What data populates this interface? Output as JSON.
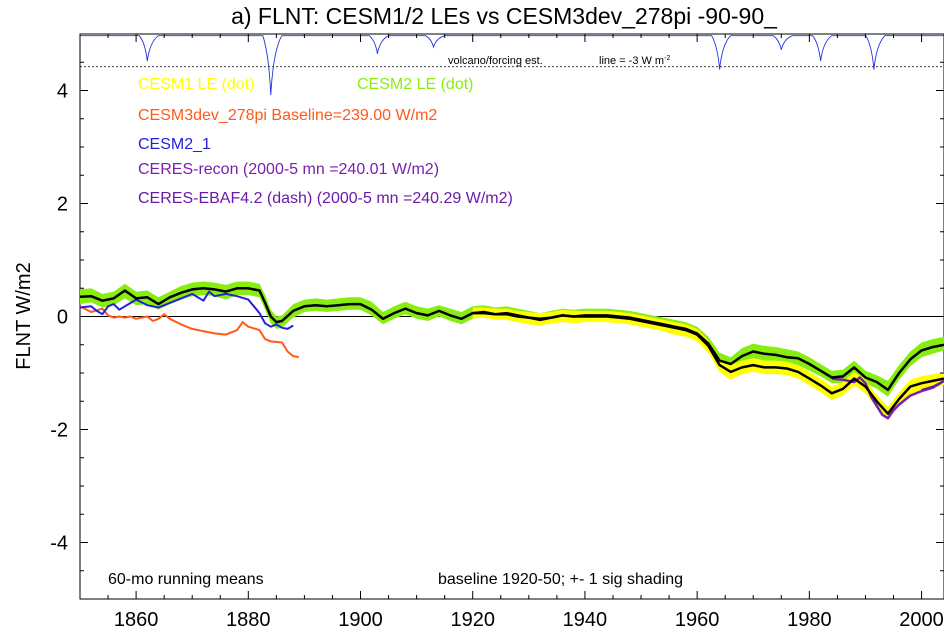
{
  "chart_data": {
    "type": "line",
    "title": "a) FLNT: CESM1/2 LEs vs CESM3dev_278pi -90-90_",
    "ylabel": "FLNT W/m2",
    "xlabel": "",
    "xlim": [
      1850,
      2004
    ],
    "ylim": [
      -5,
      5
    ],
    "xticks": [
      1860,
      1880,
      1900,
      1920,
      1940,
      1960,
      1980,
      2000
    ],
    "yticks": [
      4,
      2,
      0,
      -2,
      -4
    ],
    "zero_line": true,
    "grid": false,
    "volcano_inset": {
      "label": "volcano/forcing est.",
      "line_label": "line = -3 W m",
      "line_label_sup": "-2",
      "baseline_y": 4.97,
      "dashed_y": 4.42,
      "dips": [
        {
          "x": 1862,
          "depth": 0.45
        },
        {
          "x": 1884,
          "depth": 1.05
        },
        {
          "x": 1903,
          "depth": 0.32
        },
        {
          "x": 1913,
          "depth": 0.2
        },
        {
          "x": 1964,
          "depth": 0.6
        },
        {
          "x": 1975,
          "depth": 0.25
        },
        {
          "x": 1982,
          "depth": 0.45
        },
        {
          "x": 1991.5,
          "depth": 0.6
        }
      ]
    },
    "legend": [
      {
        "text": "CESM1 LE (dot)",
        "color": "#ffff00"
      },
      {
        "text": "CESM2 LE (dot)",
        "color": "#88ee11"
      },
      {
        "text": "CESM3dev_278pi Baseline=239.00 W/m2",
        "color": "#ff5a1a"
      },
      {
        "text": "CESM2_1",
        "color": "#2222dd"
      },
      {
        "text": "CERES-recon (2000-5 mn =240.01 W/m2)",
        "color": "#7a1fb0"
      },
      {
        "text": "CERES-EBAF4.2 (dash) (2000-5 mn =240.29 W/m2)",
        "color": "#6a1aa8"
      }
    ],
    "annotations": {
      "left": "60-mo running means",
      "right": "baseline 1920-50; +- 1 sig shading"
    },
    "series": [
      {
        "name": "CESM2 LE (dot)",
        "role": "band",
        "color": "#88ee11",
        "x": [
          1850,
          1852,
          1854,
          1856,
          1858,
          1860,
          1862,
          1864,
          1866,
          1868,
          1870,
          1872,
          1874,
          1876,
          1878,
          1880,
          1882,
          1883,
          1884,
          1885,
          1886,
          1888,
          1890,
          1892,
          1894,
          1896,
          1898,
          1900,
          1902,
          1904,
          1906,
          1908,
          1910,
          1912,
          1914,
          1916,
          1918,
          1920,
          1922,
          1924,
          1926,
          1928,
          1930,
          1932,
          1934,
          1936,
          1938,
          1940,
          1942,
          1944,
          1946,
          1948,
          1950,
          1952,
          1954,
          1956,
          1958,
          1960,
          1962,
          1964,
          1966,
          1968,
          1970,
          1972,
          1974,
          1976,
          1978,
          1980,
          1982,
          1984,
          1986,
          1988,
          1990,
          1992,
          1994,
          1996,
          1998,
          2000,
          2002,
          2004
        ],
        "lo": [
          0.22,
          0.25,
          0.16,
          0.2,
          0.32,
          0.2,
          0.22,
          0.12,
          0.22,
          0.3,
          0.36,
          0.38,
          0.36,
          0.3,
          0.38,
          0.38,
          0.34,
          0.12,
          -0.12,
          -0.22,
          -0.2,
          -0.02,
          0.08,
          0.1,
          0.08,
          0.1,
          0.12,
          0.12,
          0.02,
          -0.14,
          -0.04,
          0.04,
          -0.04,
          -0.08,
          0.0,
          -0.08,
          -0.14,
          -0.04,
          0.0,
          -0.04,
          -0.02,
          -0.06,
          -0.1,
          -0.14,
          -0.1,
          -0.06,
          -0.08,
          -0.06,
          -0.06,
          -0.06,
          -0.08,
          -0.1,
          -0.14,
          -0.18,
          -0.22,
          -0.26,
          -0.32,
          -0.4,
          -0.58,
          -0.9,
          -0.98,
          -0.82,
          -0.74,
          -0.78,
          -0.8,
          -0.84,
          -0.86,
          -0.96,
          -1.06,
          -1.18,
          -1.18,
          -1.02,
          -1.18,
          -1.28,
          -1.42,
          -1.12,
          -0.88,
          -0.72,
          -0.66,
          -0.6
        ],
        "hi": [
          0.48,
          0.5,
          0.4,
          0.44,
          0.58,
          0.44,
          0.46,
          0.34,
          0.44,
          0.54,
          0.6,
          0.62,
          0.6,
          0.56,
          0.62,
          0.62,
          0.58,
          0.38,
          0.12,
          0.0,
          0.02,
          0.22,
          0.3,
          0.32,
          0.3,
          0.32,
          0.34,
          0.34,
          0.26,
          0.08,
          0.18,
          0.26,
          0.18,
          0.14,
          0.2,
          0.14,
          0.08,
          0.18,
          0.2,
          0.16,
          0.18,
          0.14,
          0.1,
          0.06,
          0.1,
          0.14,
          0.12,
          0.14,
          0.14,
          0.14,
          0.12,
          0.1,
          0.06,
          0.02,
          -0.02,
          -0.06,
          -0.1,
          -0.18,
          -0.36,
          -0.64,
          -0.72,
          -0.56,
          -0.48,
          -0.52,
          -0.54,
          -0.58,
          -0.62,
          -0.72,
          -0.84,
          -0.96,
          -0.94,
          -0.78,
          -0.96,
          -1.04,
          -1.14,
          -0.86,
          -0.62,
          -0.46,
          -0.4,
          -0.36
        ]
      },
      {
        "name": "CESM1 LE (dot)",
        "role": "band",
        "color": "#ffff00",
        "x": [
          1920,
          1922,
          1924,
          1926,
          1928,
          1930,
          1932,
          1934,
          1936,
          1938,
          1940,
          1942,
          1944,
          1946,
          1948,
          1950,
          1952,
          1954,
          1956,
          1958,
          1960,
          1962,
          1964,
          1966,
          1968,
          1970,
          1972,
          1974,
          1976,
          1978,
          1980,
          1982,
          1984,
          1986,
          1988,
          1990,
          1992,
          1994,
          1996,
          1998,
          2000,
          2002,
          2004
        ],
        "lo": [
          -0.04,
          -0.02,
          -0.06,
          -0.06,
          -0.1,
          -0.14,
          -0.16,
          -0.12,
          -0.1,
          -0.12,
          -0.1,
          -0.1,
          -0.1,
          -0.12,
          -0.14,
          -0.18,
          -0.22,
          -0.26,
          -0.32,
          -0.36,
          -0.44,
          -0.64,
          -0.98,
          -1.12,
          -1.02,
          -0.98,
          -1.02,
          -1.02,
          -1.04,
          -1.1,
          -1.22,
          -1.34,
          -1.48,
          -1.4,
          -1.22,
          -1.36,
          -1.62,
          -1.84,
          -1.58,
          -1.38,
          -1.3,
          -1.26,
          -1.22
        ],
        "hi": [
          0.16,
          0.16,
          0.14,
          0.14,
          0.1,
          0.08,
          0.06,
          0.08,
          0.12,
          0.1,
          0.1,
          0.1,
          0.1,
          0.08,
          0.06,
          0.02,
          -0.02,
          -0.06,
          -0.1,
          -0.14,
          -0.22,
          -0.42,
          -0.74,
          -0.86,
          -0.78,
          -0.74,
          -0.78,
          -0.78,
          -0.8,
          -0.86,
          -0.98,
          -1.1,
          -1.24,
          -1.16,
          -0.98,
          -1.12,
          -1.38,
          -1.6,
          -1.34,
          -1.12,
          -1.06,
          -1.02,
          -0.98
        ]
      },
      {
        "name": "CESM3dev_278pi",
        "role": "line",
        "color": "#ff5a1a",
        "width": 2,
        "x": [
          1850,
          1852,
          1854,
          1855,
          1856,
          1857,
          1858,
          1859,
          1860,
          1862,
          1863,
          1864,
          1865,
          1866,
          1868,
          1870,
          1872,
          1874,
          1876,
          1878,
          1879,
          1880,
          1882,
          1883,
          1884,
          1886,
          1887,
          1888,
          1889
        ],
        "y": [
          0.18,
          0.08,
          0.14,
          0.02,
          -0.02,
          0.0,
          -0.02,
          0.0,
          -0.04,
          0.0,
          -0.08,
          -0.04,
          0.04,
          -0.04,
          -0.14,
          -0.22,
          -0.26,
          -0.3,
          -0.32,
          -0.24,
          -0.1,
          -0.18,
          -0.24,
          -0.4,
          -0.44,
          -0.46,
          -0.62,
          -0.7,
          -0.72
        ]
      },
      {
        "name": "CESM2_1",
        "role": "line",
        "color": "#2222dd",
        "width": 2,
        "x": [
          1850,
          1852,
          1853,
          1854,
          1855,
          1856,
          1857,
          1858,
          1860,
          1862,
          1864,
          1866,
          1868,
          1870,
          1872,
          1873,
          1874,
          1876,
          1878,
          1880,
          1881,
          1882,
          1883,
          1884,
          1885,
          1886,
          1887,
          1888
        ],
        "y": [
          0.16,
          0.18,
          0.1,
          0.04,
          0.18,
          0.22,
          0.12,
          0.18,
          0.3,
          0.2,
          0.16,
          0.24,
          0.32,
          0.4,
          0.28,
          0.44,
          0.36,
          0.4,
          0.36,
          0.3,
          0.18,
          0.06,
          -0.12,
          -0.18,
          -0.14,
          -0.2,
          -0.22,
          -0.16
        ]
      },
      {
        "name": "CERES-recon (2000-5 mn =240.01 W/m2)",
        "role": "line",
        "color": "#7a1fb0",
        "width": 2.5,
        "x": [
          1984,
          1986,
          1988,
          1989,
          1990,
          1991,
          1992,
          1993,
          1994,
          1995,
          1996,
          1998,
          2000,
          2002,
          2004
        ],
        "y": [
          -1.1,
          -1.12,
          -1.16,
          -1.08,
          -1.18,
          -1.42,
          -1.58,
          -1.74,
          -1.8,
          -1.66,
          -1.56,
          -1.4,
          -1.32,
          -1.26,
          -1.14
        ]
      },
      {
        "name": "CERES-EBAF4.2 (dash) (2000-5 mn =240.29 W/m2)",
        "role": "line",
        "color": "#6a1aa8",
        "width": 2,
        "x": [
          2000,
          2002,
          2004
        ],
        "y": [
          -1.3,
          -1.24,
          -1.14
        ]
      },
      {
        "name": "CESM2 LE mean",
        "role": "line",
        "color": "#000000",
        "width": 2.5,
        "x": [
          1850,
          1852,
          1854,
          1856,
          1858,
          1860,
          1862,
          1864,
          1866,
          1868,
          1870,
          1872,
          1874,
          1876,
          1878,
          1880,
          1882,
          1883,
          1884,
          1885,
          1886,
          1888,
          1890,
          1892,
          1894,
          1896,
          1898,
          1900,
          1902,
          1904,
          1906,
          1908,
          1910,
          1912,
          1914,
          1916,
          1918,
          1920,
          1922,
          1924,
          1926,
          1928,
          1930,
          1932,
          1934,
          1936,
          1938,
          1940,
          1942,
          1944,
          1946,
          1948,
          1950,
          1952,
          1954,
          1956,
          1958,
          1960,
          1962,
          1964,
          1966,
          1968,
          1970,
          1972,
          1974,
          1976,
          1978,
          1980,
          1982,
          1984,
          1986,
          1988,
          1990,
          1992,
          1994,
          1996,
          1998,
          2000,
          2002,
          2004
        ],
        "y": [
          0.35,
          0.36,
          0.28,
          0.32,
          0.46,
          0.32,
          0.34,
          0.22,
          0.34,
          0.42,
          0.48,
          0.5,
          0.48,
          0.44,
          0.5,
          0.5,
          0.46,
          0.24,
          0.0,
          -0.1,
          -0.08,
          0.1,
          0.18,
          0.2,
          0.18,
          0.2,
          0.22,
          0.22,
          0.12,
          -0.04,
          0.06,
          0.14,
          0.06,
          0.02,
          0.1,
          0.02,
          -0.04,
          0.06,
          0.08,
          0.04,
          0.06,
          0.02,
          -0.02,
          -0.06,
          -0.02,
          0.02,
          0.0,
          0.02,
          0.02,
          0.02,
          0.0,
          -0.02,
          -0.06,
          -0.1,
          -0.14,
          -0.18,
          -0.22,
          -0.3,
          -0.48,
          -0.78,
          -0.84,
          -0.7,
          -0.62,
          -0.66,
          -0.68,
          -0.72,
          -0.74,
          -0.84,
          -0.96,
          -1.08,
          -1.06,
          -0.9,
          -1.08,
          -1.16,
          -1.3,
          -1.0,
          -0.76,
          -0.6,
          -0.54,
          -0.5
        ]
      },
      {
        "name": "CESM1 LE mean",
        "role": "line",
        "color": "#000000",
        "width": 2.5,
        "x": [
          1920,
          1922,
          1924,
          1926,
          1928,
          1930,
          1932,
          1934,
          1936,
          1938,
          1940,
          1942,
          1944,
          1946,
          1948,
          1950,
          1952,
          1954,
          1956,
          1958,
          1960,
          1962,
          1964,
          1966,
          1968,
          1970,
          1972,
          1974,
          1976,
          1978,
          1980,
          1982,
          1984,
          1986,
          1988,
          1990,
          1992,
          1994,
          1996,
          1998,
          2000,
          2002,
          2004
        ],
        "y": [
          0.06,
          0.06,
          0.04,
          0.04,
          0.0,
          -0.02,
          -0.04,
          -0.02,
          0.02,
          0.0,
          0.0,
          0.0,
          0.0,
          -0.02,
          -0.04,
          -0.08,
          -0.12,
          -0.16,
          -0.2,
          -0.24,
          -0.32,
          -0.52,
          -0.86,
          -0.98,
          -0.9,
          -0.86,
          -0.9,
          -0.9,
          -0.92,
          -0.98,
          -1.1,
          -1.22,
          -1.36,
          -1.28,
          -1.1,
          -1.24,
          -1.5,
          -1.72,
          -1.46,
          -1.24,
          -1.18,
          -1.14,
          -1.1
        ]
      }
    ]
  }
}
